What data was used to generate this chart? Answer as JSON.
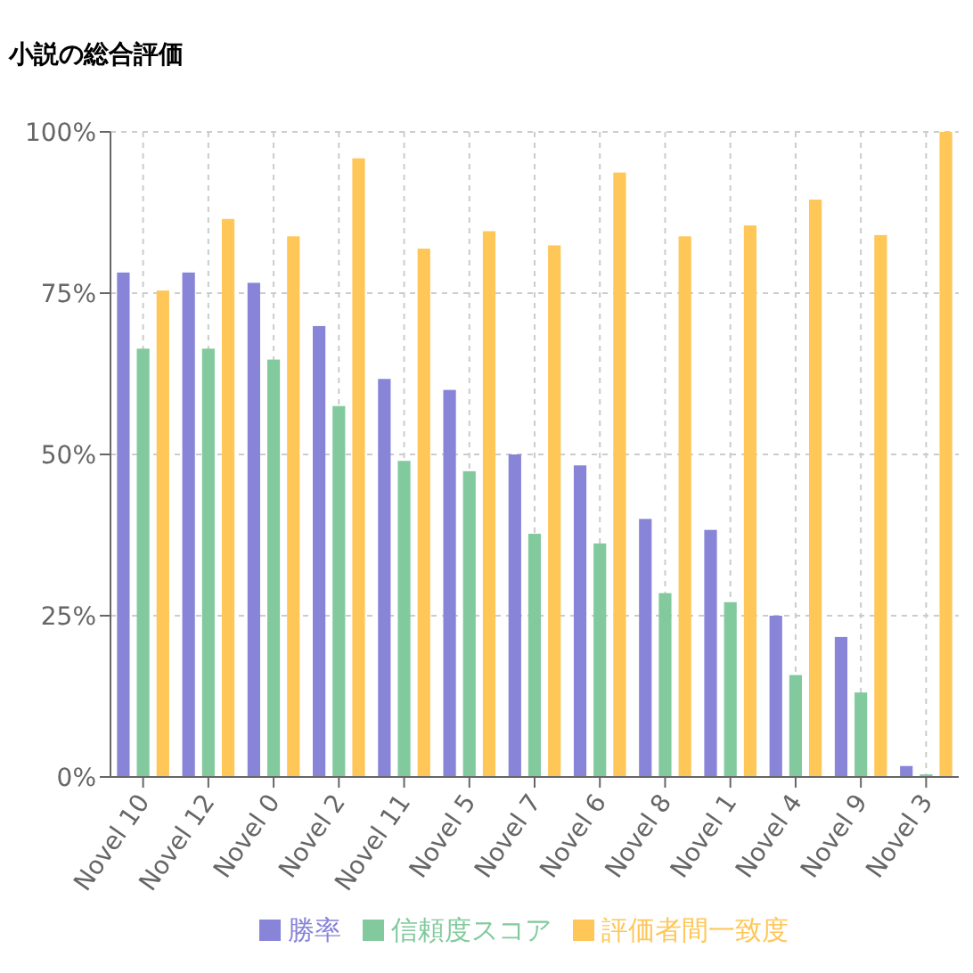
{
  "chart_data": {
    "type": "bar",
    "title": "小説の総合評価",
    "categories": [
      "Novel 10",
      "Novel 12",
      "Novel 0",
      "Novel 2",
      "Novel 11",
      "Novel 5",
      "Novel 7",
      "Novel 6",
      "Novel 8",
      "Novel 1",
      "Novel 4",
      "Novel 9",
      "Novel 3"
    ],
    "series": [
      {
        "name": "勝率",
        "color": "#8884d8",
        "values": [
          78.2,
          78.2,
          76.6,
          69.9,
          61.7,
          60.0,
          50.0,
          48.3,
          40.0,
          38.3,
          25.0,
          21.7,
          1.7
        ]
      },
      {
        "name": "信頼度スコア",
        "color": "#82ca9d",
        "values": [
          66.4,
          66.4,
          64.7,
          57.5,
          49.0,
          47.4,
          37.7,
          36.2,
          28.5,
          27.1,
          15.8,
          13.1,
          0.4
        ]
      },
      {
        "name": "評価者間一致度",
        "color": "#ffc658",
        "values": [
          75.4,
          86.5,
          83.8,
          95.9,
          81.9,
          84.6,
          82.4,
          93.7,
          83.8,
          85.5,
          89.5,
          84.0,
          100
        ]
      }
    ],
    "ylim": [
      0,
      100
    ],
    "yticks": [
      {
        "value": 0,
        "label": "0%"
      },
      {
        "value": 25,
        "label": "25%"
      },
      {
        "value": 50,
        "label": "50%"
      },
      {
        "value": 75,
        "label": "75%"
      },
      {
        "value": 100,
        "label": "100%"
      }
    ],
    "grid": true,
    "legend": "bottom"
  }
}
